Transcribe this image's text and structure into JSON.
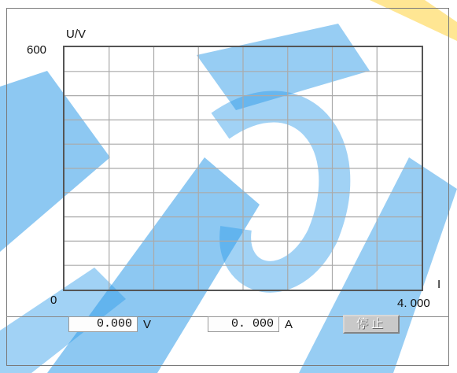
{
  "chart_data": {
    "type": "line",
    "ylabel": "U/V",
    "xlabel": "I",
    "ylim": [
      0,
      600
    ],
    "xlim": [
      0,
      4.0
    ],
    "y_tick_labels": [
      "0",
      "600"
    ],
    "x_tick_labels": [
      "4. 000"
    ],
    "grid": true,
    "series": []
  },
  "readouts": {
    "voltage_value": "0.000",
    "voltage_unit": "V",
    "current_value": "0. 000",
    "current_unit": "A"
  },
  "controls": {
    "stop_label": "停止"
  },
  "colors": {
    "watermark_blue": "#2f9be8",
    "watermark_yellow": "#ffd23a",
    "grid": "#aaaaaa",
    "axis": "#555555"
  }
}
